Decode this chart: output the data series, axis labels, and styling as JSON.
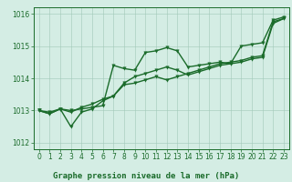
{
  "xlabel": "Graphe pression niveau de la mer (hPa)",
  "ylim": [
    1011.8,
    1016.2
  ],
  "xlim": [
    -0.5,
    23.5
  ],
  "yticks": [
    1012,
    1013,
    1014,
    1015,
    1016
  ],
  "xticks": [
    0,
    1,
    2,
    3,
    4,
    5,
    6,
    7,
    8,
    9,
    10,
    11,
    12,
    13,
    14,
    15,
    16,
    17,
    18,
    19,
    20,
    21,
    22,
    23
  ],
  "bg_color": "#d4ede4",
  "grid_color": "#a0c8b8",
  "line_color": "#1a6b2a",
  "line1": [
    1013.0,
    1012.95,
    1013.05,
    1013.0,
    1013.05,
    1013.1,
    1013.15,
    1014.4,
    1014.3,
    1014.25,
    1014.8,
    1014.85,
    1014.95,
    1014.85,
    1014.35,
    1014.4,
    1014.45,
    1014.5,
    1014.45,
    1015.0,
    1015.05,
    1015.1,
    1015.8,
    1015.9
  ],
  "line2": [
    1013.0,
    1012.9,
    1013.05,
    1012.5,
    1012.95,
    1013.05,
    1013.3,
    1013.45,
    1013.8,
    1013.85,
    1013.95,
    1014.05,
    1013.95,
    1014.05,
    1014.15,
    1014.25,
    1014.35,
    1014.45,
    1014.5,
    1014.55,
    1014.65,
    1014.7,
    1015.75,
    1015.85
  ],
  "line3": [
    1013.0,
    1012.9,
    1013.05,
    1012.95,
    1013.1,
    1013.2,
    1013.35,
    1013.45,
    1013.85,
    1014.05,
    1014.15,
    1014.25,
    1014.35,
    1014.25,
    1014.1,
    1014.2,
    1014.3,
    1014.4,
    1014.45,
    1014.5,
    1014.6,
    1014.65,
    1015.7,
    1015.85
  ],
  "markersize": 2.5,
  "linewidth": 1.0,
  "tick_fontsize": 5.5,
  "xlabel_fontsize": 6.5
}
